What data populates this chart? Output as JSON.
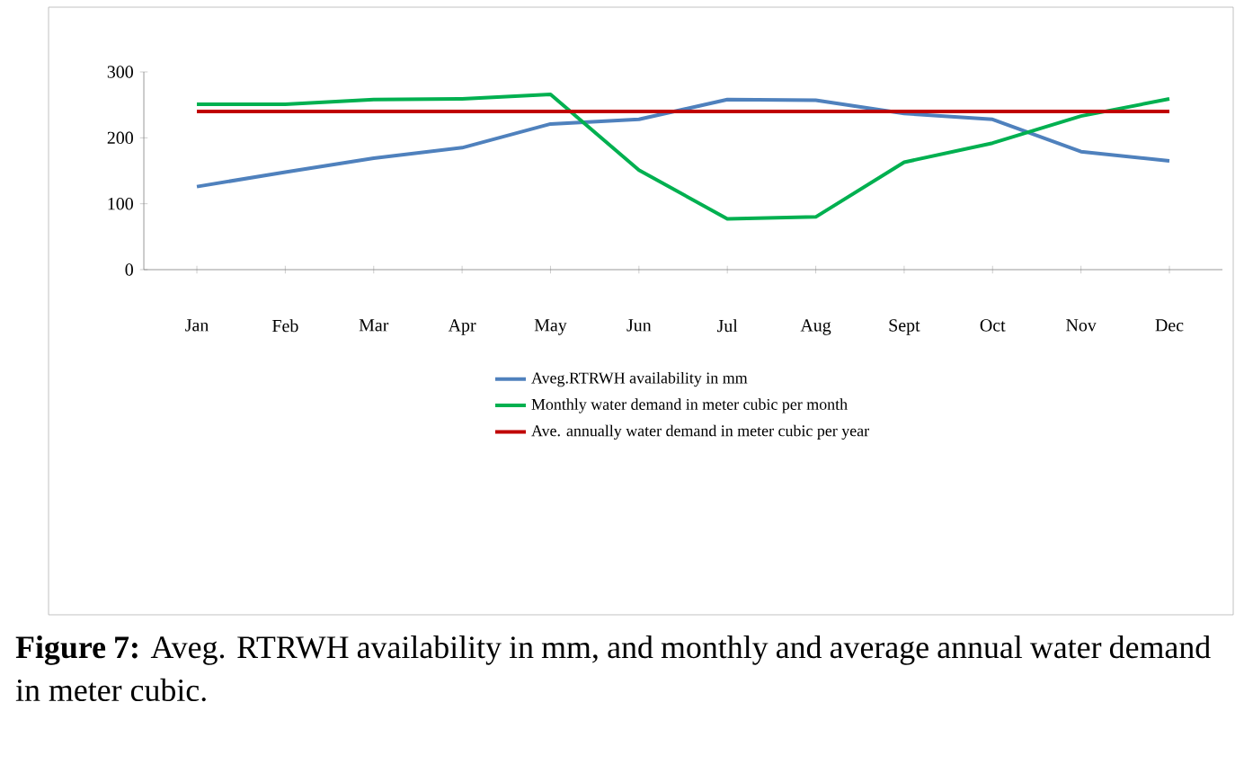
{
  "chart_data": {
    "type": "line",
    "categories": [
      "Jan",
      "Feb",
      "Mar",
      "Apr",
      "May",
      "Jun",
      "Jul",
      "Aug",
      "Sept",
      "Oct",
      "Nov",
      "Dec"
    ],
    "series": [
      {
        "name": "Aveg.RTRWH availability in mm",
        "color": "#4f81bd",
        "values": [
          126,
          148,
          169,
          185,
          221,
          228,
          258,
          257,
          237,
          228,
          179,
          165
        ]
      },
      {
        "name": "Monthly water demand in meter cubic per month",
        "color": "#00b050",
        "values": [
          251,
          251,
          258,
          259,
          266,
          151,
          77,
          80,
          163,
          192,
          233,
          259
        ]
      },
      {
        "name": "Ave. annually water demand in meter cubic per year",
        "color": "#c00000",
        "values": [
          240,
          240,
          240,
          240,
          240,
          240,
          240,
          240,
          240,
          240,
          240,
          240
        ]
      }
    ],
    "ylim": [
      0,
      300
    ],
    "yticks": [
      0,
      100,
      200,
      300
    ],
    "grid": false,
    "legend": "bottom",
    "marker": "none",
    "line_style": "solid",
    "annotations": [
      "**Figure 7:** Aveg. RTRWH availability in mm, and monthly and average annual water demand in meter cubic."
    ]
  }
}
